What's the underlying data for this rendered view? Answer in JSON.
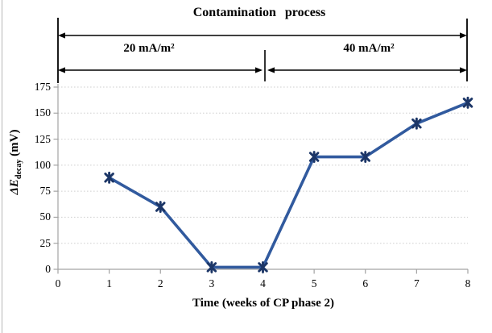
{
  "annotations": {
    "title": "Contamination process",
    "phase1_label": "20 mA/m²",
    "phase2_label": "40 mA/m²",
    "phase_split_week": 4
  },
  "chart_data": {
    "type": "line",
    "x": [
      1,
      2,
      3,
      4,
      5,
      6,
      7,
      8
    ],
    "values": [
      88,
      60,
      2,
      2,
      108,
      108,
      140,
      160
    ],
    "xlabel": "Time (weeks of CP phase 2)",
    "ylabel": "ΔE_decay (mV)",
    "ylabel_parts": {
      "symbol": "ΔE",
      "sub": "decay",
      "unit": " (mV)"
    },
    "xlim": [
      0,
      8
    ],
    "ylim": [
      0,
      175
    ],
    "xticks": [
      0,
      1,
      2,
      3,
      4,
      5,
      6,
      7,
      8
    ],
    "yticks": [
      0,
      25,
      50,
      75,
      100,
      125,
      150,
      175
    ],
    "grid": "horizontal-dotted",
    "legend": false,
    "line_color": "#315a9e",
    "marker": "star",
    "marker_color": "#1c3667",
    "axis_color": "#a3a3a3",
    "grid_color": "#cfcfcf",
    "annotation_color": "#000000"
  }
}
